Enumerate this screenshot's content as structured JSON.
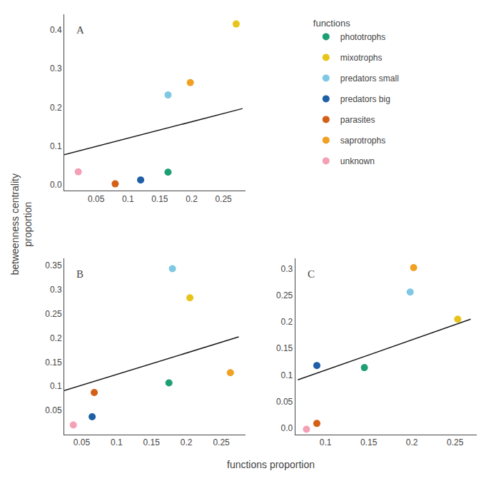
{
  "chart_data": {
    "type": "scatter",
    "xlabel": "functions proportion",
    "ylabel": "betweenness centrality\nproportion",
    "legend_title": "functions",
    "grid": false,
    "panels": [
      {
        "title": "A",
        "xlim": [
          0.0,
          0.285
        ],
        "ylim": [
          -0.015,
          0.44
        ],
        "xticks": [
          0.05,
          0.1,
          0.15,
          0.2,
          0.25
        ],
        "yticks": [
          {
            "value": 0.0,
            "label": "0.0"
          },
          0.1,
          0.2,
          0.3,
          0.4
        ],
        "series": [
          {
            "type": "line",
            "color": "#1a1a1a",
            "x": [
              0.0,
              0.28
            ],
            "values": [
              0.078,
              0.197
            ]
          },
          {
            "name": "phototrophs",
            "color": "#1d9f74",
            "x": [
              0.163
            ],
            "values": [
              0.033
            ]
          },
          {
            "name": "mixotrophs",
            "color": "#e8c419",
            "x": [
              0.27
            ],
            "values": [
              0.415
            ]
          },
          {
            "name": "predators small",
            "color": "#7ec8e3",
            "x": [
              0.163
            ],
            "values": [
              0.232
            ]
          },
          {
            "name": "predators big",
            "color": "#1e5fa6",
            "x": [
              0.12
            ],
            "values": [
              0.013
            ]
          },
          {
            "name": "parasites",
            "color": "#d45f17",
            "x": [
              0.08
            ],
            "values": [
              0.003
            ]
          },
          {
            "name": "saprotrophs",
            "color": "#f0a022",
            "x": [
              0.198
            ],
            "values": [
              0.264
            ]
          },
          {
            "name": "unknown",
            "color": "#f4a0b5",
            "x": [
              0.022
            ],
            "values": [
              0.034
            ]
          }
        ]
      },
      {
        "title": "B",
        "xlim": [
          0.025,
          0.285
        ],
        "ylim": [
          0.0,
          0.365
        ],
        "xticks": [
          0.05,
          0.1,
          0.15,
          0.2,
          0.25
        ],
        "yticks": [
          0.05,
          0.1,
          0.15,
          0.2,
          0.25,
          0.3,
          0.35
        ],
        "series": [
          {
            "type": "line",
            "color": "#1a1a1a",
            "x": [
              0.025,
              0.275
            ],
            "values": [
              0.091,
              0.202
            ]
          },
          {
            "name": "phototrophs",
            "color": "#1d9f74",
            "x": [
              0.175
            ],
            "values": [
              0.107
            ]
          },
          {
            "name": "mixotrophs",
            "color": "#e8c419",
            "x": [
              0.205
            ],
            "values": [
              0.283
            ]
          },
          {
            "name": "predators small",
            "color": "#7ec8e3",
            "x": [
              0.18
            ],
            "values": [
              0.343
            ]
          },
          {
            "name": "predators big",
            "color": "#1e5fa6",
            "x": [
              0.065
            ],
            "values": [
              0.037
            ]
          },
          {
            "name": "parasites",
            "color": "#d45f17",
            "x": [
              0.068
            ],
            "values": [
              0.087
            ]
          },
          {
            "name": "saprotrophs",
            "color": "#f0a022",
            "x": [
              0.263
            ],
            "values": [
              0.128
            ]
          },
          {
            "name": "unknown",
            "color": "#f4a0b5",
            "x": [
              0.038
            ],
            "values": [
              0.02
            ]
          }
        ]
      },
      {
        "title": "C",
        "xlim": [
          0.065,
          0.275
        ],
        "ylim": [
          -0.012,
          0.32
        ],
        "xticks": [
          0.1,
          0.15,
          0.2,
          0.25
        ],
        "yticks": [
          {
            "value": 0.0,
            "label": "0.0"
          },
          0.05,
          0.1,
          0.15,
          0.2,
          0.25,
          0.3
        ],
        "series": [
          {
            "type": "line",
            "color": "#1a1a1a",
            "x": [
              0.068,
              0.268
            ],
            "values": [
              0.091,
              0.205
            ]
          },
          {
            "name": "phototrophs",
            "color": "#1d9f74",
            "x": [
              0.145
            ],
            "values": [
              0.114
            ]
          },
          {
            "name": "mixotrophs",
            "color": "#e8c419",
            "x": [
              0.253
            ],
            "values": [
              0.205
            ]
          },
          {
            "name": "predators small",
            "color": "#7ec8e3",
            "x": [
              0.198
            ],
            "values": [
              0.256
            ]
          },
          {
            "name": "predators big",
            "color": "#1e5fa6",
            "x": [
              0.09
            ],
            "values": [
              0.118
            ]
          },
          {
            "name": "parasites",
            "color": "#d45f17",
            "x": [
              0.09
            ],
            "values": [
              0.009
            ]
          },
          {
            "name": "saprotrophs",
            "color": "#f0a022",
            "x": [
              0.202
            ],
            "values": [
              0.302
            ]
          },
          {
            "name": "unknown",
            "color": "#f4a0b5",
            "x": [
              0.078
            ],
            "values": [
              -0.002
            ]
          }
        ]
      }
    ]
  }
}
